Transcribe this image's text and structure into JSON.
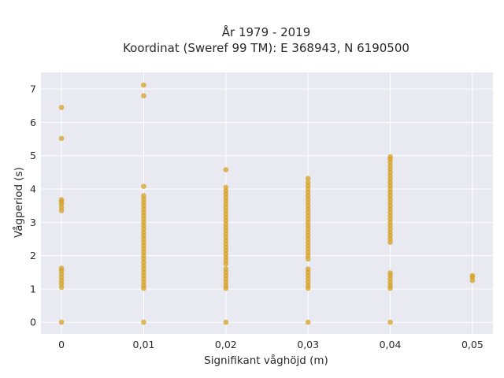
{
  "chart_data": {
    "type": "scatter",
    "title_lines": [
      "År 1979 - 2019",
      "Koordinat (Sweref 99 TM): E 368943, N 6190500"
    ],
    "xlabel": "Signifikant våghöjd (m)",
    "ylabel": "Vågperiod (s)",
    "x_ticks": [
      {
        "value": 0,
        "label": "0"
      },
      {
        "value": 0.01,
        "label": "0,01"
      },
      {
        "value": 0.02,
        "label": "0,02"
      },
      {
        "value": 0.03,
        "label": "0,03"
      },
      {
        "value": 0.04,
        "label": "0,04"
      },
      {
        "value": 0.05,
        "label": "0,05"
      }
    ],
    "y_ticks": [
      0,
      1,
      2,
      3,
      4,
      5,
      6,
      7
    ],
    "xlim": [
      -0.0025,
      0.0525
    ],
    "ylim": [
      -0.35,
      7.5
    ],
    "grid": true,
    "background": "#e9e9f1",
    "marker_color": "#d4a021",
    "series": [
      {
        "x": 0,
        "y": [
          0,
          1.05,
          1.15,
          1.25,
          1.35,
          1.45,
          1.55,
          1.62,
          3.35,
          3.45,
          3.55,
          3.62,
          3.68,
          5.52,
          6.45
        ]
      },
      {
        "x": 0.01,
        "y": [
          0,
          1.02,
          1.1,
          1.2,
          1.3,
          1.4,
          1.5,
          1.6,
          1.7,
          1.8,
          1.9,
          2.0,
          2.1,
          2.2,
          2.3,
          2.4,
          2.5,
          2.6,
          2.7,
          2.8,
          2.9,
          3.0,
          3.1,
          3.2,
          3.3,
          3.4,
          3.5,
          3.6,
          3.7,
          3.8,
          4.08,
          6.8,
          7.12
        ]
      },
      {
        "x": 0.02,
        "y": [
          0,
          1.02,
          1.1,
          1.2,
          1.3,
          1.4,
          1.5,
          1.6,
          1.75,
          1.85,
          1.95,
          2.05,
          2.15,
          2.25,
          2.35,
          2.45,
          2.55,
          2.65,
          2.75,
          2.85,
          2.95,
          3.05,
          3.15,
          3.25,
          3.35,
          3.45,
          3.55,
          3.65,
          3.75,
          3.85,
          3.95,
          4.05,
          4.58
        ]
      },
      {
        "x": 0.03,
        "y": [
          0,
          1.02,
          1.1,
          1.2,
          1.3,
          1.4,
          1.5,
          1.6,
          1.9,
          2.0,
          2.1,
          2.2,
          2.3,
          2.4,
          2.5,
          2.6,
          2.7,
          2.8,
          2.9,
          3.0,
          3.1,
          3.2,
          3.3,
          3.4,
          3.5,
          3.6,
          3.7,
          3.8,
          3.9,
          4.0,
          4.1,
          4.2,
          4.32
        ]
      },
      {
        "x": 0.04,
        "y": [
          0,
          1.02,
          1.1,
          1.2,
          1.3,
          1.4,
          1.48,
          2.4,
          2.5,
          2.6,
          2.7,
          2.8,
          2.9,
          3.0,
          3.1,
          3.2,
          3.3,
          3.4,
          3.5,
          3.6,
          3.7,
          3.8,
          3.9,
          4.0,
          4.1,
          4.2,
          4.3,
          4.4,
          4.5,
          4.6,
          4.7,
          4.8,
          4.9,
          4.97
        ]
      },
      {
        "x": 0.05,
        "y": [
          1.25,
          1.35,
          1.4
        ]
      }
    ]
  }
}
